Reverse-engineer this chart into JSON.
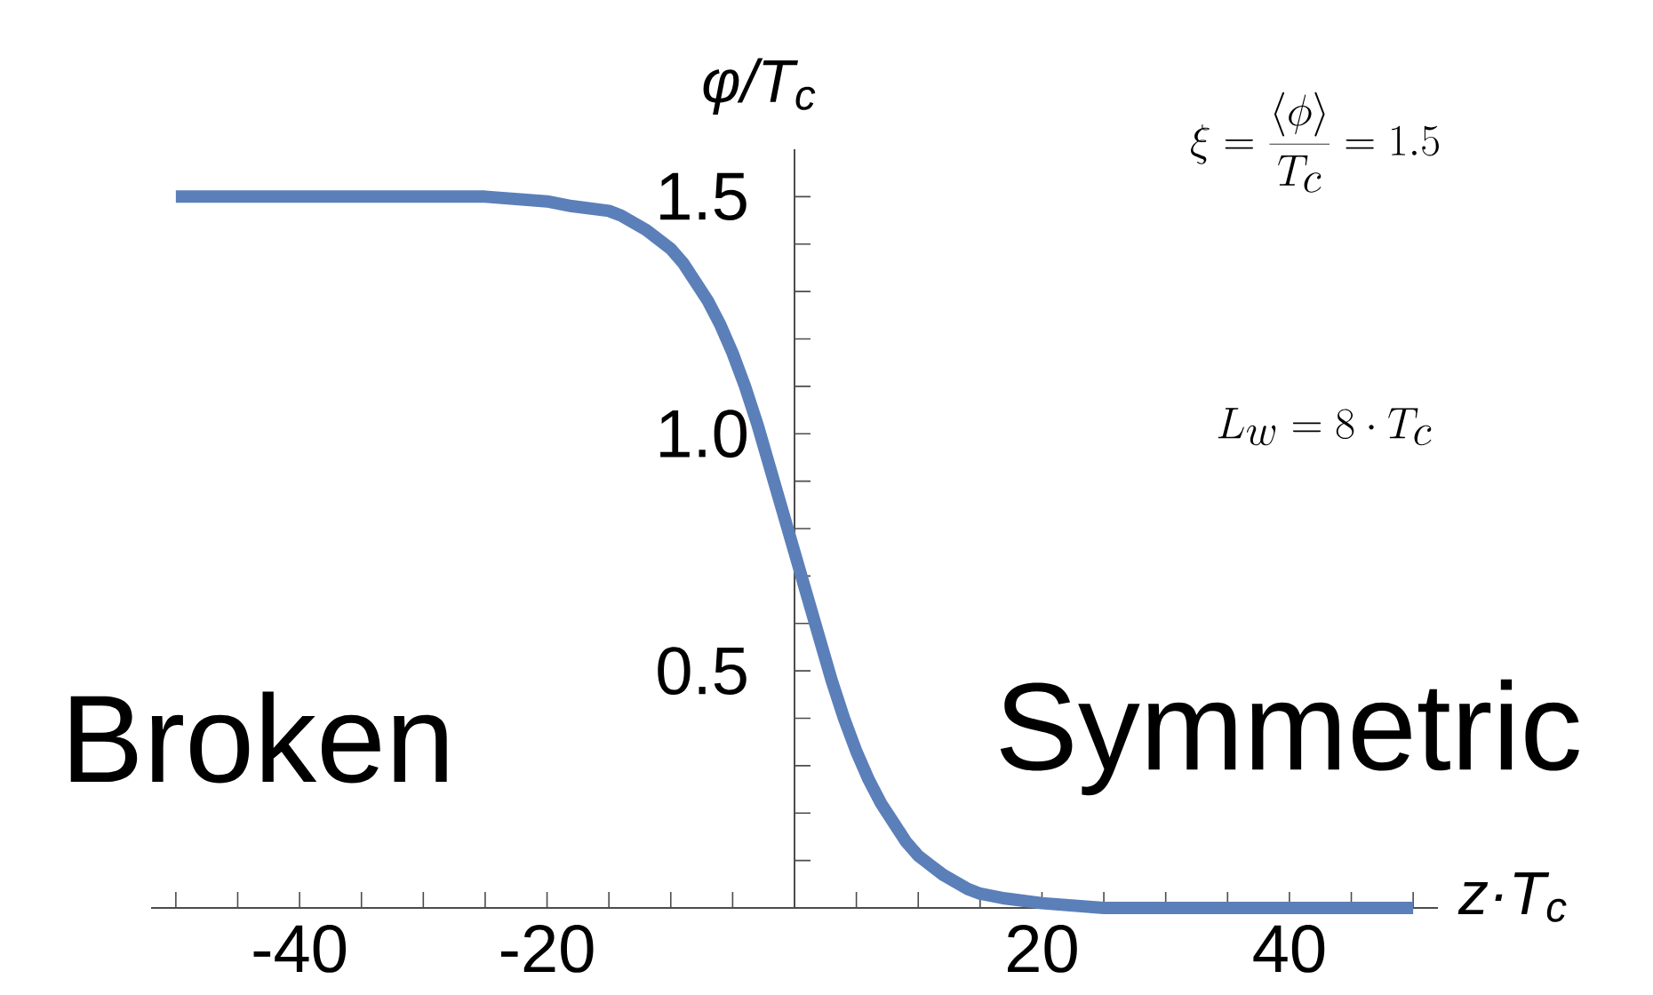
{
  "chart_data": {
    "type": "line",
    "xlabel": "z·T$_{c}$",
    "ylabel": "φ/T$_{c}$",
    "annotations": [
      "\\xi = \\frac{\\langle \\phi \\rangle}{T_c} = 1.5",
      "L_w = 8 \\cdot T_c",
      "Broken",
      "Symmetric"
    ],
    "x": [
      -50,
      -30,
      -25,
      -20,
      -18,
      -15,
      -14,
      -12,
      -10,
      -9,
      -8,
      -7,
      -6,
      -5,
      -4,
      -3,
      -2,
      -1,
      0,
      1,
      2,
      3,
      4,
      5,
      6,
      7,
      8,
      9,
      10,
      11,
      12,
      14,
      15,
      17,
      20,
      25,
      30,
      50
    ],
    "values": [
      1.5,
      1.5,
      1.5,
      1.49,
      1.48,
      1.47,
      1.46,
      1.43,
      1.39,
      1.36,
      1.32,
      1.28,
      1.23,
      1.17,
      1.1,
      1.02,
      0.93,
      0.84,
      0.75,
      0.66,
      0.57,
      0.48,
      0.4,
      0.33,
      0.27,
      0.22,
      0.18,
      0.14,
      0.11,
      0.09,
      0.07,
      0.04,
      0.03,
      0.02,
      0.01,
      0.0,
      0.0,
      0.0
    ],
    "color": "#5b7fb9",
    "marker": "none",
    "line_style": "solid",
    "xlim": [
      -52,
      52
    ],
    "ylim": [
      0,
      1.6
    ],
    "xticks": [
      {
        "value": -50,
        "label": null
      },
      {
        "value": -45,
        "label": null
      },
      -40,
      {
        "value": -35,
        "label": null
      },
      {
        "value": -30,
        "label": null
      },
      {
        "value": -25,
        "label": null
      },
      -20,
      {
        "value": -15,
        "label": null
      },
      {
        "value": -10,
        "label": null
      },
      {
        "value": -5,
        "label": null
      },
      {
        "value": 5,
        "label": null
      },
      {
        "value": 10,
        "label": null
      },
      {
        "value": 15,
        "label": null
      },
      20,
      {
        "value": 25,
        "label": null
      },
      {
        "value": 30,
        "label": null
      },
      {
        "value": 35,
        "label": null
      },
      40,
      {
        "value": 45,
        "label": null
      },
      {
        "value": 50,
        "label": null
      }
    ],
    "yticks": [
      {
        "value": 0.1,
        "label": null
      },
      {
        "value": 0.2,
        "label": null
      },
      {
        "value": 0.3,
        "label": null
      },
      {
        "value": 0.4,
        "label": null
      },
      0.5,
      {
        "value": 0.6,
        "label": null
      },
      {
        "value": 0.7,
        "label": null
      },
      {
        "value": 0.8,
        "label": null
      },
      {
        "value": 0.9,
        "label": null
      },
      {
        "value": 1.0,
        "label": "1.0"
      },
      {
        "value": 1.1,
        "label": null
      },
      {
        "value": 1.2,
        "label": null
      },
      {
        "value": 1.3,
        "label": null
      },
      {
        "value": 1.4,
        "label": null
      },
      1.5
    ]
  }
}
